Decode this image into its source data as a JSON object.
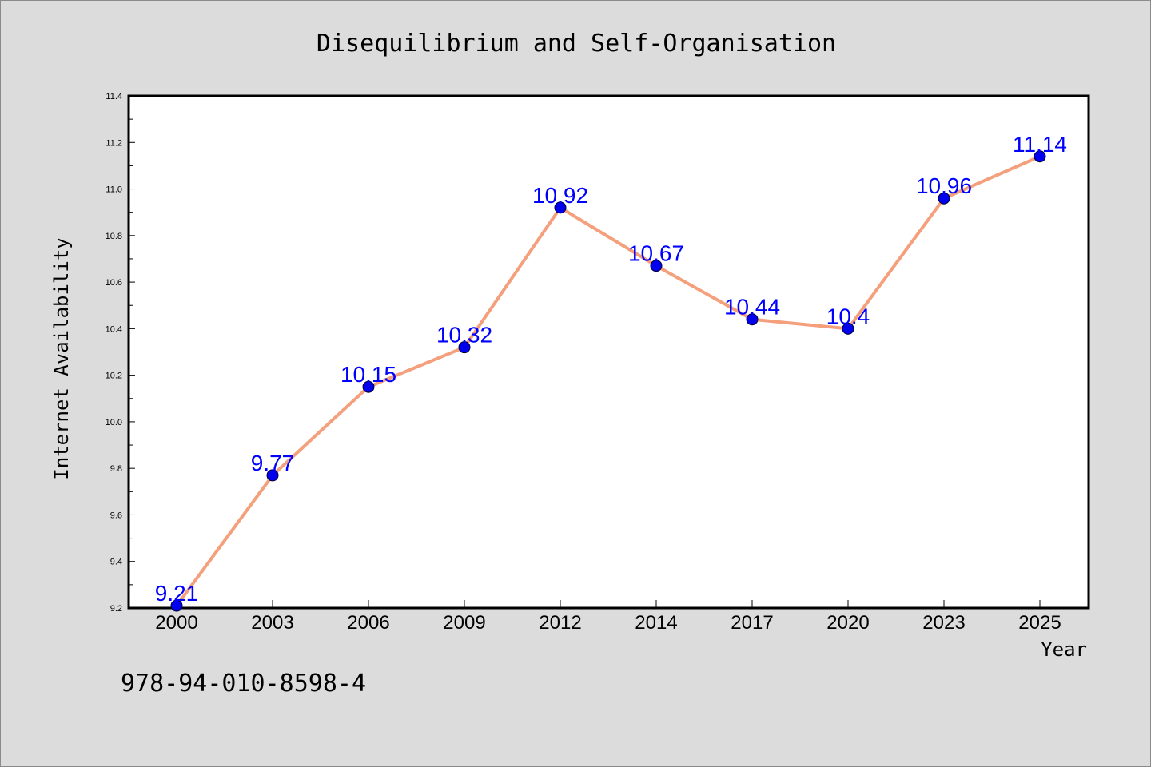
{
  "chart_data": {
    "type": "line",
    "title": "Disequilibrium and Self-Organisation",
    "xlabel": "Year",
    "ylabel": "Internet Availability",
    "categories": [
      "2000",
      "2003",
      "2006",
      "2009",
      "2012",
      "2014",
      "2017",
      "2020",
      "2023",
      "2025"
    ],
    "series": [
      {
        "values": [
          9.21,
          9.77,
          10.15,
          10.32,
          10.92,
          10.67,
          10.44,
          10.4,
          10.96,
          11.14
        ]
      }
    ],
    "data_labels": [
      "9.21",
      "9.77",
      "10.15",
      "10.32",
      "10.92",
      "10.67",
      "10.44",
      "10.4",
      "10.96",
      "11.14"
    ],
    "yticks": [
      "9.2",
      "9.4",
      "9.6",
      "9.8",
      "10.0",
      "10.2",
      "10.4",
      "10.6",
      "10.8",
      "11.0",
      "11.2",
      "11.4"
    ],
    "ylim": [
      9.2,
      11.4
    ],
    "grid": false,
    "legend": "none",
    "colors": {
      "line": "#f4a07c",
      "marker": "#0000ee",
      "label": "#0000ff",
      "plot_bg": "#ffffff",
      "page_bg": "#dcdcdc"
    }
  },
  "footer": {
    "isbn": "978-94-010-8598-4"
  }
}
